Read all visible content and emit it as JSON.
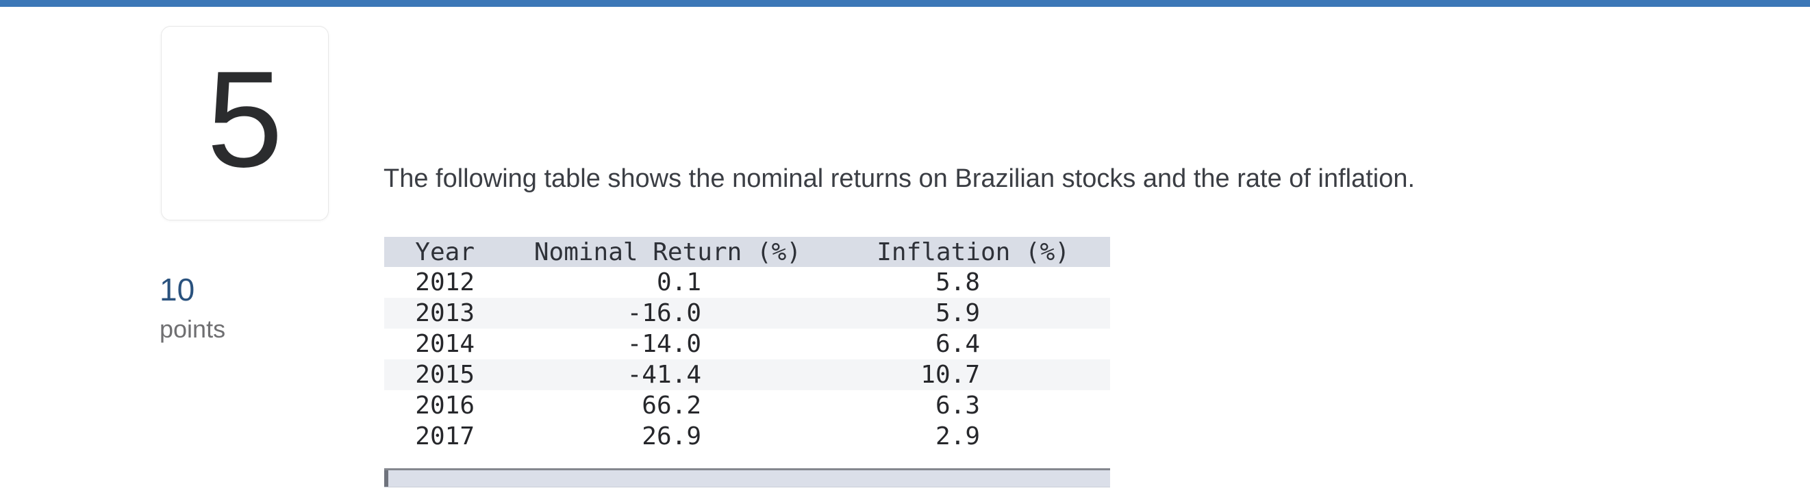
{
  "accent": {
    "top_bar_color": "#3c77b7",
    "points_color": "#2a527e",
    "table_header_bg": "#d9dde6",
    "table_stripe_bg": "#f4f5f7"
  },
  "question": {
    "number": "5",
    "points_value": "10",
    "points_label": "points"
  },
  "prompt_text": "The following table shows the nominal returns on Brazilian stocks and the rate of inflation.",
  "table": {
    "headers": [
      "Year",
      "Nominal Return (%)",
      "Inflation (%)"
    ],
    "rows": [
      {
        "year": "2012",
        "nominal": "0.1",
        "inflation": "5.8",
        "striped": false
      },
      {
        "year": "2013",
        "nominal": "-16.0",
        "inflation": "5.9",
        "striped": true
      },
      {
        "year": "2014",
        "nominal": "-14.0",
        "inflation": "6.4",
        "striped": false
      },
      {
        "year": "2015",
        "nominal": "-41.4",
        "inflation": "10.7",
        "striped": true
      },
      {
        "year": "2016",
        "nominal": "66.2",
        "inflation": "6.3",
        "striped": false
      },
      {
        "year": "2017",
        "nominal": "26.9",
        "inflation": "2.9",
        "striped": false
      }
    ]
  }
}
